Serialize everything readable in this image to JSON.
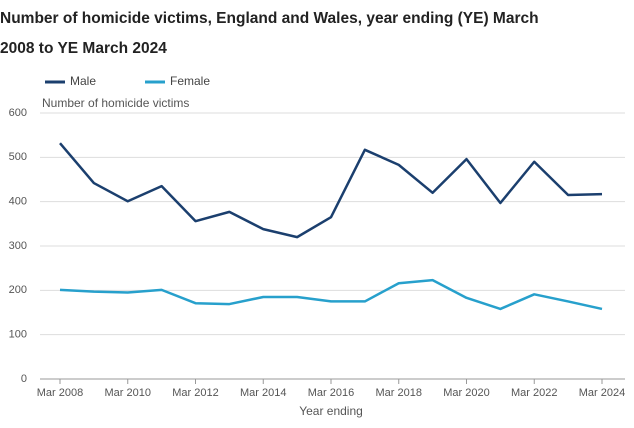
{
  "chart_data": {
    "type": "line",
    "title": "Number of homicide victims, England and Wales, year ending (YE) March 2008 to YE March 2024",
    "y_label": "Number of homicide victims",
    "x_label": "Year ending",
    "categories": [
      "Mar 2008",
      null,
      "Mar 2010",
      null,
      "Mar 2012",
      null,
      "Mar 2014",
      null,
      "Mar 2016",
      null,
      "Mar 2018",
      null,
      "Mar 2020",
      null,
      "Mar 2022",
      null,
      "Mar 2024"
    ],
    "series": [
      {
        "name": "Male",
        "color": "#1b3f6e",
        "values": [
          532,
          442,
          401,
          435,
          356,
          377,
          338,
          320,
          365,
          517,
          483,
          420,
          496,
          397,
          490,
          415,
          417
        ]
      },
      {
        "name": "Female",
        "color": "#27a0cc",
        "values": [
          201,
          197,
          195,
          201,
          171,
          169,
          185,
          185,
          175,
          175,
          216,
          223,
          183,
          158,
          191,
          175,
          158
        ]
      }
    ],
    "ylim": [
      0,
      600
    ],
    "yticks": [
      0,
      100,
      200,
      300,
      400,
      500,
      600
    ],
    "grid": true,
    "legend": "top-left"
  }
}
